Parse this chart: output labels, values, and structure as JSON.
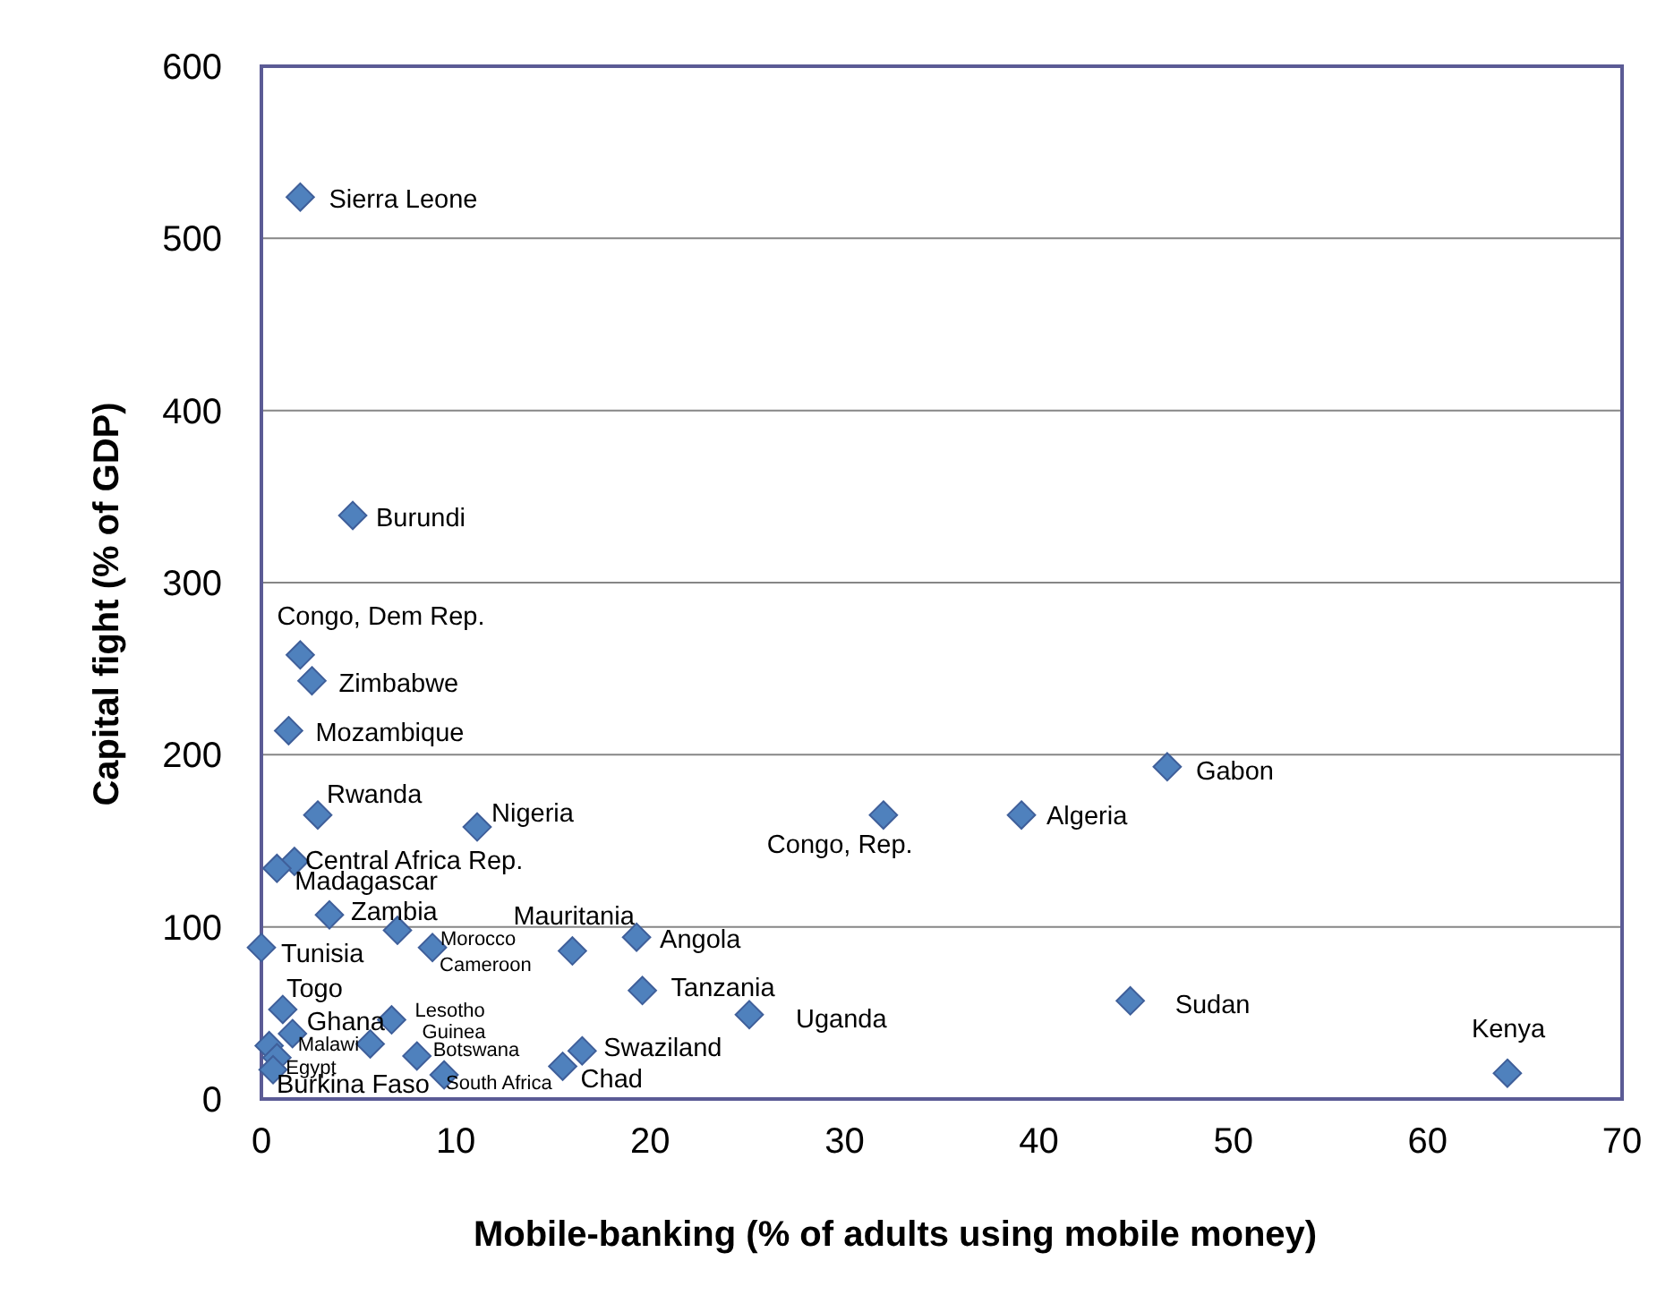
{
  "chart_data": {
    "type": "scatter",
    "xlabel": "Mobile-banking (% of adults using mobile money)",
    "ylabel": "Capital fight (% of GDP)",
    "xlim": [
      0,
      70
    ],
    "xticks": [
      0,
      10,
      20,
      30,
      40,
      50,
      60,
      70
    ],
    "ylim": [
      0,
      600
    ],
    "yticks": [
      0,
      100,
      200,
      300,
      400,
      500,
      600
    ],
    "grid": "y",
    "marker": "diamond",
    "series": [
      {
        "color": "#4f81bd",
        "x": [
          2.0,
          4.7,
          2.0,
          2.6,
          1.4,
          2.9,
          11.1,
          1.7,
          0.8,
          3.5,
          7.0,
          8.8,
          16.0,
          0,
          19.3,
          19.6,
          25.1,
          32.0,
          16.5,
          15.5,
          1.1,
          1.6,
          6.7,
          5.6,
          8.0,
          9.4,
          0.4,
          0.8,
          0.6,
          39.1,
          46.6,
          44.7,
          64.1
        ],
        "values": [
          524,
          339,
          258,
          243,
          214,
          165,
          158,
          138,
          134,
          107,
          98,
          88,
          86,
          88,
          94,
          63,
          49,
          165,
          28,
          19,
          52,
          38,
          46,
          32,
          25,
          14,
          31,
          24,
          17,
          165,
          193,
          57,
          15
        ]
      }
    ],
    "annotations": [
      {
        "text": "Sierra Leone",
        "x": 2.0,
        "y": 524
      },
      {
        "text": "Burundi",
        "x": 4.7,
        "y": 339
      },
      {
        "text": "Congo, Dem Rep.",
        "x": 2.0,
        "y": 258
      },
      {
        "text": "Zimbabwe",
        "x": 2.6,
        "y": 243
      },
      {
        "text": "Mozambique",
        "x": 1.4,
        "y": 214
      },
      {
        "text": "Rwanda",
        "x": 2.9,
        "y": 165
      },
      {
        "text": "Nigeria",
        "x": 11.1,
        "y": 158
      },
      {
        "text": "Central Africa Rep.",
        "x": 1.7,
        "y": 138
      },
      {
        "text": "Madagascar",
        "x": 0.8,
        "y": 134
      },
      {
        "text": "Zambia",
        "x": 3.5,
        "y": 107
      },
      {
        "text": "Morocco",
        "x": 7.0,
        "y": 98
      },
      {
        "text": "Cameroon",
        "x": 8.8,
        "y": 88
      },
      {
        "text": "Mauritania",
        "x": 16.0,
        "y": 86
      },
      {
        "text": "Tunisia",
        "x": 0,
        "y": 88
      },
      {
        "text": "Angola",
        "x": 19.3,
        "y": 94
      },
      {
        "text": "Tanzania",
        "x": 19.6,
        "y": 63
      },
      {
        "text": "Uganda",
        "x": 25.1,
        "y": 49
      },
      {
        "text": "Congo, Rep.",
        "x": 32.0,
        "y": 165
      },
      {
        "text": "Swaziland",
        "x": 16.5,
        "y": 28
      },
      {
        "text": "Chad",
        "x": 15.5,
        "y": 19
      },
      {
        "text": "Togo",
        "x": 1.1,
        "y": 52
      },
      {
        "text": "Ghana",
        "x": 1.6,
        "y": 38
      },
      {
        "text": "Lesotho",
        "x": 6.7,
        "y": 46
      },
      {
        "text": "Guinea",
        "x": 5.6,
        "y": 32
      },
      {
        "text": "Botswana",
        "x": 8.0,
        "y": 25
      },
      {
        "text": "South Africa",
        "x": 9.4,
        "y": 14
      },
      {
        "text": "Malawi",
        "x": 0.4,
        "y": 31
      },
      {
        "text": "Egypt",
        "x": 0.8,
        "y": 24
      },
      {
        "text": "Burkina Faso",
        "x": 0.6,
        "y": 17
      },
      {
        "text": "Algeria",
        "x": 39.1,
        "y": 165
      },
      {
        "text": "Gabon",
        "x": 46.6,
        "y": 193
      },
      {
        "text": "Sudan",
        "x": 44.7,
        "y": 57
      },
      {
        "text": "Kenya",
        "x": 64.1,
        "y": 15
      }
    ]
  }
}
